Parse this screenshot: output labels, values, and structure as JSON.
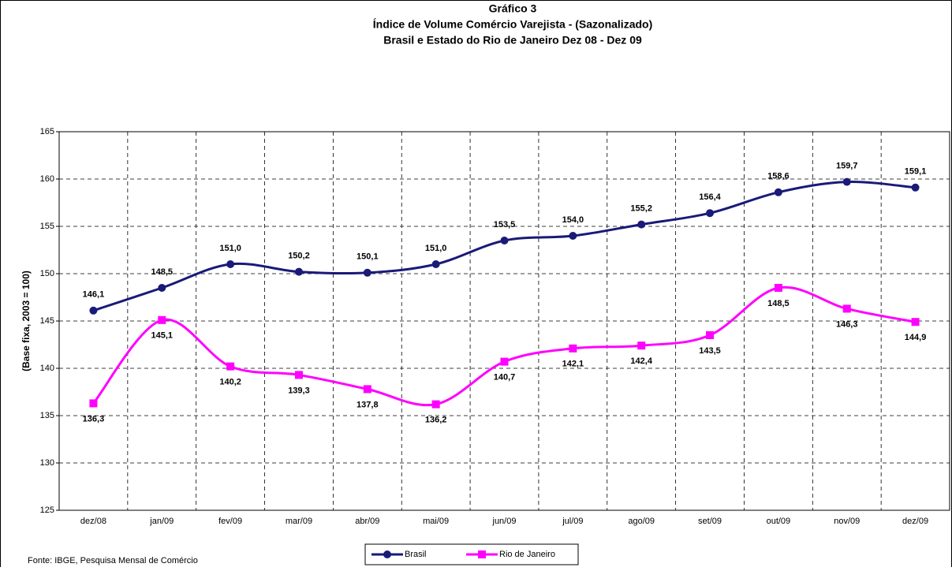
{
  "chart_data": {
    "type": "line",
    "title": "Gráfico 3",
    "subtitle": "Índice de Volume Comércio Varejista - (Sazonalizado)",
    "subtitle2": "Brasil e Estado do Rio de Janeiro Dez 08 - Dez  09",
    "y_label": "(Base fixa, 2003 = 100)",
    "source": "Fonte: IBGE, Pesquisa Mensal de Comércio",
    "categories": [
      "dez/08",
      "jan/09",
      "fev/09",
      "mar/09",
      "abr/09",
      "mai/09",
      "jun/09",
      "jul/09",
      "ago/09",
      "set/09",
      "out/09",
      "nov/09",
      "dez/09"
    ],
    "series": [
      {
        "name": "Brasil",
        "color": "#1a1a78",
        "marker": "circle",
        "values": [
          146.1,
          148.5,
          151.0,
          150.2,
          150.1,
          151.0,
          153.5,
          154.0,
          155.2,
          156.4,
          158.6,
          159.7,
          159.1
        ],
        "value_labels": [
          "146,1",
          "148,5",
          "151,0",
          "150,2",
          "150,1",
          "151,0",
          "153,5",
          "154,0",
          "155,2",
          "156,4",
          "158,6",
          "159,7",
          "159,1"
        ]
      },
      {
        "name": "Rio de Janeiro",
        "color": "#ff00ff",
        "marker": "square",
        "values": [
          136.3,
          145.1,
          140.2,
          139.3,
          137.8,
          136.2,
          140.7,
          142.1,
          142.4,
          143.5,
          148.5,
          146.3,
          144.9
        ],
        "value_labels": [
          "136,3",
          "145,1",
          "140,2",
          "139,3",
          "137,8",
          "136,2",
          "140,7",
          "142,1",
          "142,4",
          "143,5",
          "148,5",
          "146,3",
          "144,9"
        ]
      }
    ],
    "ylim": [
      125,
      165
    ],
    "yticks": [
      125,
      130,
      135,
      140,
      145,
      150,
      155,
      160,
      165
    ],
    "grid": true,
    "smooth": true,
    "legend": "bottom"
  }
}
